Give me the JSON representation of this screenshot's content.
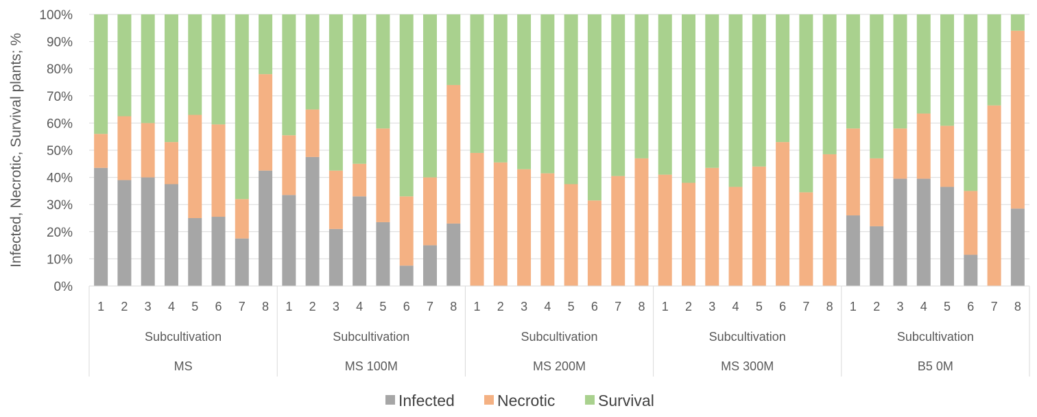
{
  "chart_data": {
    "type": "bar",
    "stacked": "percent",
    "ylabel": "Infected, Necrotic, Survival plants; %",
    "ylim": [
      0,
      100
    ],
    "yticks": [
      "0%",
      "10%",
      "20%",
      "30%",
      "40%",
      "50%",
      "60%",
      "70%",
      "80%",
      "90%",
      "100%"
    ],
    "grid": true,
    "legend_position": "bottom",
    "colors": {
      "Infected": "#a6a6a6",
      "Necrotic": "#f4b183",
      "Survival": "#a9d18e"
    },
    "groups": [
      {
        "label": "MS",
        "sublabel": "Subcultivation",
        "categories": [
          "1",
          "2",
          "3",
          "4",
          "5",
          "6",
          "7",
          "8"
        ]
      },
      {
        "label": "MS 100M",
        "sublabel": "Subcultivation",
        "categories": [
          "1",
          "2",
          "3",
          "4",
          "5",
          "6",
          "7",
          "8"
        ]
      },
      {
        "label": "MS 200M",
        "sublabel": "Subcultivation",
        "categories": [
          "1",
          "2",
          "3",
          "4",
          "5",
          "6",
          "7",
          "8"
        ]
      },
      {
        "label": "MS 300M",
        "sublabel": "Subcultivation",
        "categories": [
          "1",
          "2",
          "3",
          "4",
          "5",
          "6",
          "7",
          "8"
        ]
      },
      {
        "label": "B5 0M",
        "sublabel": "Subcultivation",
        "categories": [
          "1",
          "2",
          "3",
          "4",
          "5",
          "6",
          "7",
          "8"
        ]
      }
    ],
    "series": [
      {
        "name": "Infected",
        "values": [
          43.5,
          39,
          40,
          37.5,
          25,
          25.5,
          17.5,
          42.5,
          33.5,
          47.5,
          21,
          33,
          23.5,
          7.5,
          15,
          23,
          0,
          0,
          0,
          0,
          0,
          0,
          0,
          0,
          0,
          0,
          0,
          0,
          0,
          0,
          0,
          0,
          26,
          22,
          39.5,
          39.5,
          36.5,
          11.5,
          0,
          28.5
        ]
      },
      {
        "name": "Necrotic",
        "values": [
          12.5,
          23.5,
          20,
          15.5,
          38,
          34,
          14.5,
          35.5,
          22,
          17.5,
          21.5,
          12,
          34.5,
          25.5,
          25,
          51,
          49,
          45.5,
          43,
          41.5,
          37.5,
          31.5,
          40.5,
          47,
          41,
          38,
          43.5,
          36.5,
          44,
          53,
          34.5,
          48.5,
          32,
          25,
          18.5,
          24,
          22.5,
          23.5,
          66.5,
          65.5
        ]
      },
      {
        "name": "Survival",
        "values": [
          44,
          37.5,
          40,
          47,
          37,
          40.5,
          68,
          22,
          44.5,
          35,
          57.5,
          55,
          42,
          67,
          60,
          26,
          51,
          54.5,
          57,
          58.5,
          62.5,
          68.5,
          59.5,
          53,
          59,
          62,
          56.5,
          63.5,
          56,
          47,
          65.5,
          51.5,
          42,
          53,
          42,
          36.5,
          41,
          65,
          33.5,
          6
        ]
      }
    ]
  }
}
